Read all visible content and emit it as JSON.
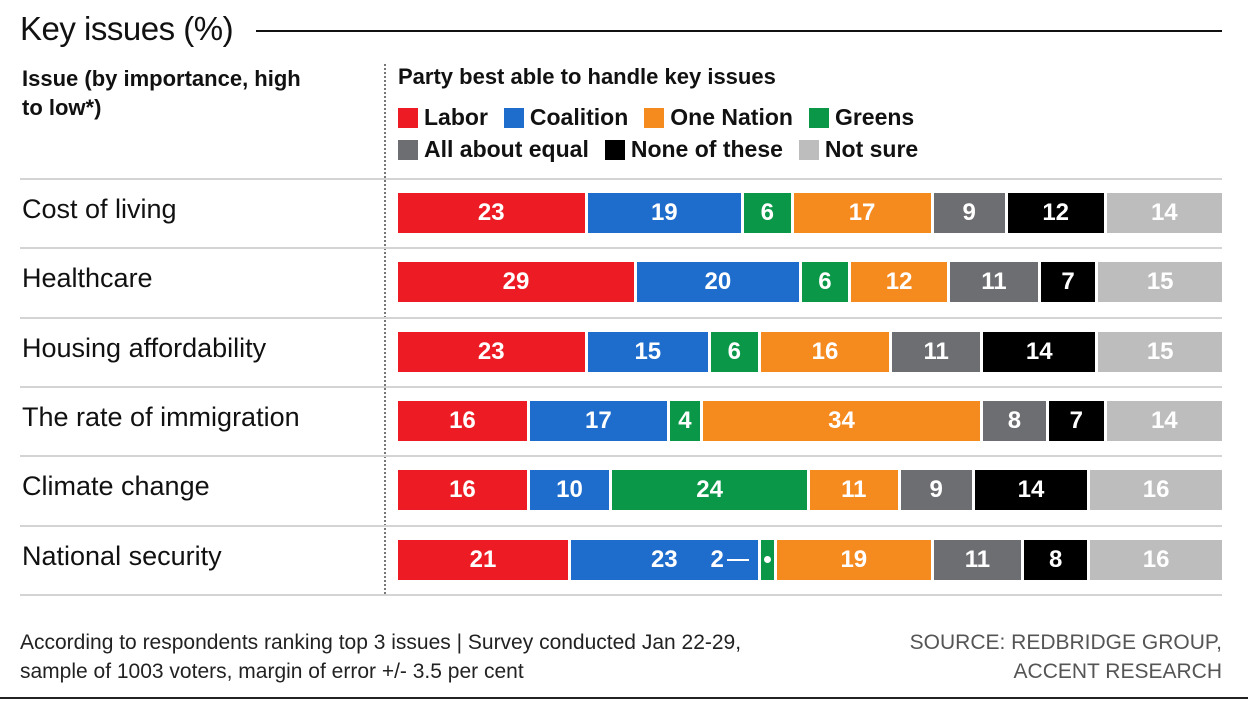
{
  "chart_data": {
    "type": "bar",
    "stacked": true,
    "orientation": "horizontal",
    "title": "Key issues (%)",
    "row_header": "Issue (by importance, high to low*)",
    "legend_title": "Party best able to handle key issues",
    "legend": [
      {
        "name": "Labor",
        "color": "#ed1c24"
      },
      {
        "name": "Coalition",
        "color": "#1e6ccc"
      },
      {
        "name": "One Nation",
        "color": "#f58a1f"
      },
      {
        "name": "Greens",
        "color": "#0a9748"
      },
      {
        "name": "All about equal",
        "color": "#6d6e71"
      },
      {
        "name": "None of these",
        "color": "#000000"
      },
      {
        "name": "Not sure",
        "color": "#bdbdbd"
      }
    ],
    "segment_order": [
      "Labor",
      "Coalition",
      "Greens",
      "One Nation",
      "All about equal",
      "None of these",
      "Not sure"
    ],
    "categories": [
      "Cost of living",
      "Healthcare",
      "Housing affordability",
      "The rate of immigration",
      "Climate change",
      "National security"
    ],
    "values": [
      [
        23,
        19,
        6,
        17,
        9,
        12,
        14
      ],
      [
        29,
        20,
        6,
        12,
        11,
        7,
        15
      ],
      [
        23,
        15,
        6,
        16,
        11,
        14,
        15
      ],
      [
        16,
        17,
        4,
        34,
        8,
        7,
        14
      ],
      [
        16,
        10,
        24,
        11,
        9,
        14,
        16
      ],
      [
        21,
        23,
        2,
        19,
        11,
        8,
        16
      ]
    ],
    "xlim": [
      0,
      100
    ]
  },
  "footer": {
    "note_line1": "According to respondents ranking top 3 issues | Survey conducted Jan 22-29,",
    "note_line2": "sample of 1003 voters, margin of error +/- 3.5 per cent",
    "source_line1": "SOURCE: REDBRIDGE GROUP,",
    "source_line2": "ACCENT RESEARCH"
  }
}
